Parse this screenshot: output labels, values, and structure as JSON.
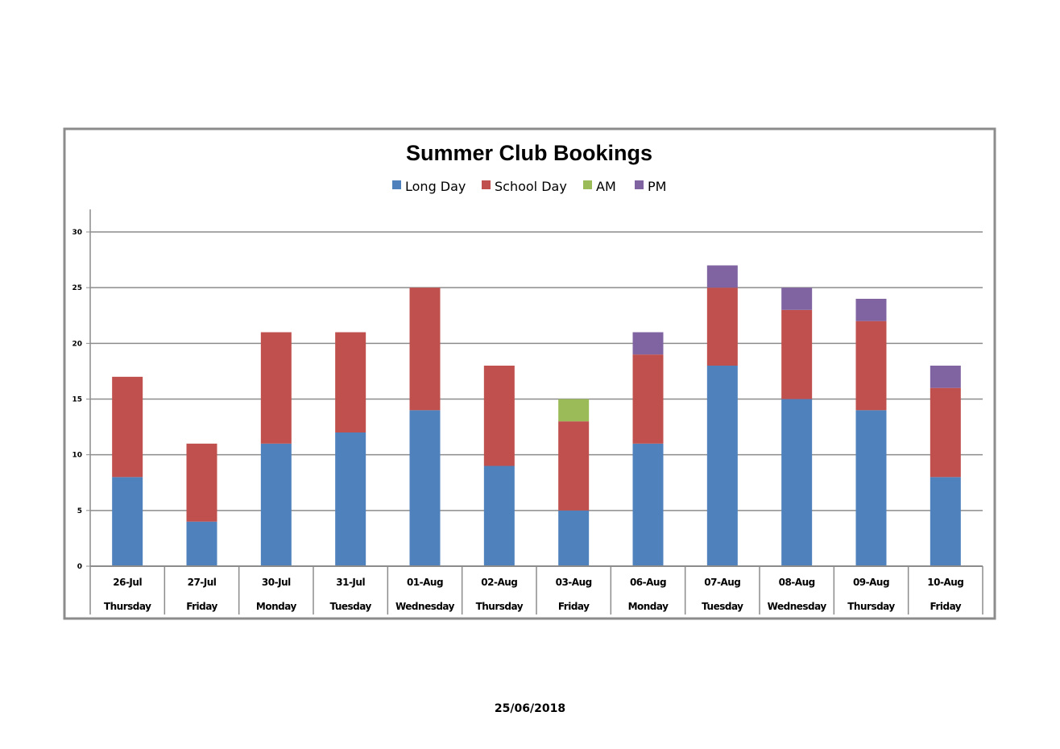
{
  "chart_data": {
    "type": "bar",
    "stacked": true,
    "title": "Summer Club Bookings",
    "xlabel": "",
    "ylabel": "",
    "ylim": [
      0,
      30
    ],
    "yticks": [
      0,
      5,
      10,
      15,
      20,
      25,
      30
    ],
    "grid": true,
    "legend_position": "top",
    "categories": [
      "26-Jul",
      "27-Jul",
      "30-Jul",
      "31-Jul",
      "01-Aug",
      "02-Aug",
      "03-Aug",
      "06-Aug",
      "07-Aug",
      "08-Aug",
      "09-Aug",
      "10-Aug"
    ],
    "days": [
      "Thursday",
      "Friday",
      "Monday",
      "Tuesday",
      "Wednesday",
      "Thursday",
      "Friday",
      "Monday",
      "Tuesday",
      "Wednesday",
      "Thursday",
      "Friday"
    ],
    "series": [
      {
        "name": "Long Day",
        "color": "#4f81bd",
        "values": [
          8,
          4,
          11,
          12,
          14,
          9,
          5,
          11,
          18,
          15,
          14,
          8
        ]
      },
      {
        "name": "School Day",
        "color": "#c0504d",
        "values": [
          9,
          7,
          10,
          9,
          11,
          9,
          8,
          8,
          7,
          8,
          8,
          8
        ]
      },
      {
        "name": "AM",
        "color": "#9bbb59",
        "values": [
          0,
          0,
          0,
          0,
          0,
          0,
          2,
          0,
          0,
          0,
          0,
          0
        ]
      },
      {
        "name": "PM",
        "color": "#8064a2",
        "values": [
          0,
          0,
          0,
          0,
          0,
          0,
          0,
          2,
          2,
          2,
          2,
          2
        ]
      }
    ]
  },
  "footer": {
    "date": "25/06/2018"
  }
}
